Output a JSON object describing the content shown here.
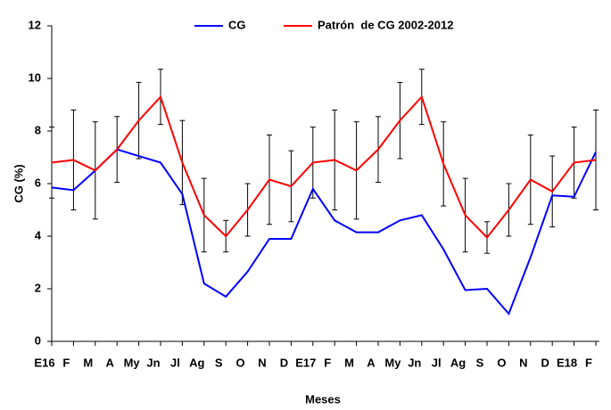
{
  "chart_data": {
    "type": "line",
    "ylabel": "CG (%)",
    "xlabel": "Meses",
    "categories": [
      "E16",
      "F",
      "M",
      "A",
      "My",
      "Jn",
      "Jl",
      "Ag",
      "S",
      "O",
      "N",
      "D",
      "E17",
      "F",
      "M",
      "A",
      "My",
      "Jn",
      "Jl",
      "Ag",
      "S",
      "O",
      "N",
      "D",
      "E18",
      "F"
    ],
    "series": [
      {
        "name": "CG",
        "color": "#0000ff",
        "values": [
          5.85,
          5.75,
          6.5,
          7.3,
          7.05,
          6.8,
          5.6,
          2.2,
          1.7,
          2.65,
          3.9,
          3.9,
          5.8,
          4.6,
          4.15,
          4.15,
          4.6,
          4.8,
          3.5,
          1.95,
          2.0,
          1.05,
          3.2,
          5.55,
          5.5,
          7.2
        ]
      },
      {
        "name": "Patrón  de CG 2002-2012",
        "color": "#ff0000",
        "values": [
          6.8,
          6.9,
          6.5,
          7.3,
          8.4,
          9.3,
          6.8,
          4.8,
          4.0,
          5.0,
          6.15,
          5.9,
          6.8,
          6.9,
          6.5,
          7.3,
          8.4,
          9.3,
          6.75,
          4.8,
          3.95,
          5.0,
          6.15,
          5.7,
          6.8,
          6.9
        ],
        "error": [
          1.35,
          1.9,
          1.85,
          1.25,
          1.45,
          1.05,
          1.6,
          1.4,
          0.6,
          1.0,
          1.7,
          1.35,
          1.35,
          1.9,
          1.85,
          1.25,
          1.45,
          1.05,
          1.6,
          1.4,
          0.6,
          1.0,
          1.7,
          1.35,
          1.35,
          1.9
        ]
      }
    ],
    "ylim": [
      0,
      12
    ],
    "yticks": [
      0,
      2,
      4,
      6,
      8,
      10,
      12
    ],
    "grid": false,
    "legend": "top"
  }
}
